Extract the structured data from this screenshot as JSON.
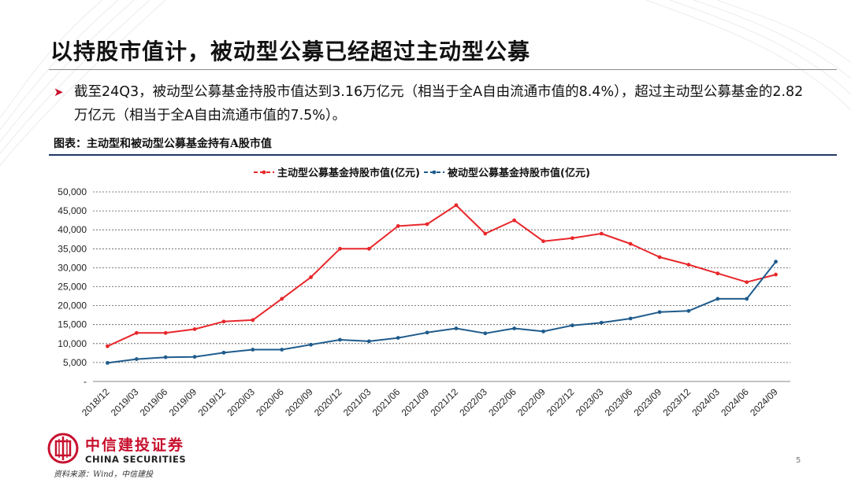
{
  "slide": {
    "title": "以持股市值计，被动型公募已经超过主动型公募",
    "bullet": "截至24Q3，被动型公募基金持股市值达到3.16万亿元（相当于全A自由流通市值的8.4%），超过主动型公募基金的2.82万亿元（相当于全A自由流通市值的7.5%）。",
    "caption": "图表：主动型和被动型公募基金持有A股市值",
    "source": "资料来源：Wind，中信建投",
    "page_number": "5"
  },
  "brand": {
    "name_cn": "中信建投证券",
    "name_en": "CHINA SECURITIES",
    "logo_icon": "citic-logo-icon",
    "accent_color": "#c8102e"
  },
  "chart_data": {
    "type": "line",
    "categories": [
      "2018/12",
      "2019/03",
      "2019/06",
      "2019/09",
      "2019/12",
      "2020/03",
      "2020/06",
      "2020/09",
      "2020/12",
      "2021/03",
      "2021/06",
      "2021/09",
      "2021/12",
      "2022/03",
      "2022/06",
      "2022/09",
      "2022/12",
      "2023/03",
      "2023/06",
      "2023/09",
      "2023/12",
      "2024/03",
      "2024/06",
      "2024/09"
    ],
    "series": [
      {
        "name": "主动型公募基金持股市值(亿元)",
        "color": "#e8272b",
        "values": [
          9300,
          12800,
          12800,
          13800,
          15800,
          16200,
          21800,
          27500,
          35000,
          35000,
          41000,
          41500,
          46500,
          39000,
          42500,
          37000,
          37800,
          39000,
          36300,
          32800,
          30800,
          28500,
          26200,
          28200
        ]
      },
      {
        "name": "被动型公募基金持股市值(亿元)",
        "color": "#1f5b8c",
        "values": [
          4900,
          5900,
          6400,
          6500,
          7600,
          8400,
          8400,
          9700,
          11000,
          10600,
          11500,
          12900,
          14000,
          12700,
          14000,
          13200,
          14800,
          15500,
          16600,
          18300,
          18600,
          21800,
          21800,
          31600
        ]
      }
    ],
    "y_ticks": [
      "50,000",
      "45,000",
      "40,000",
      "35,000",
      "30,000",
      "25,000",
      "20,000",
      "15,000",
      "10,000",
      "5,000",
      "-"
    ],
    "ylim": [
      0,
      50000
    ],
    "grid": true,
    "legend_position": "top"
  }
}
